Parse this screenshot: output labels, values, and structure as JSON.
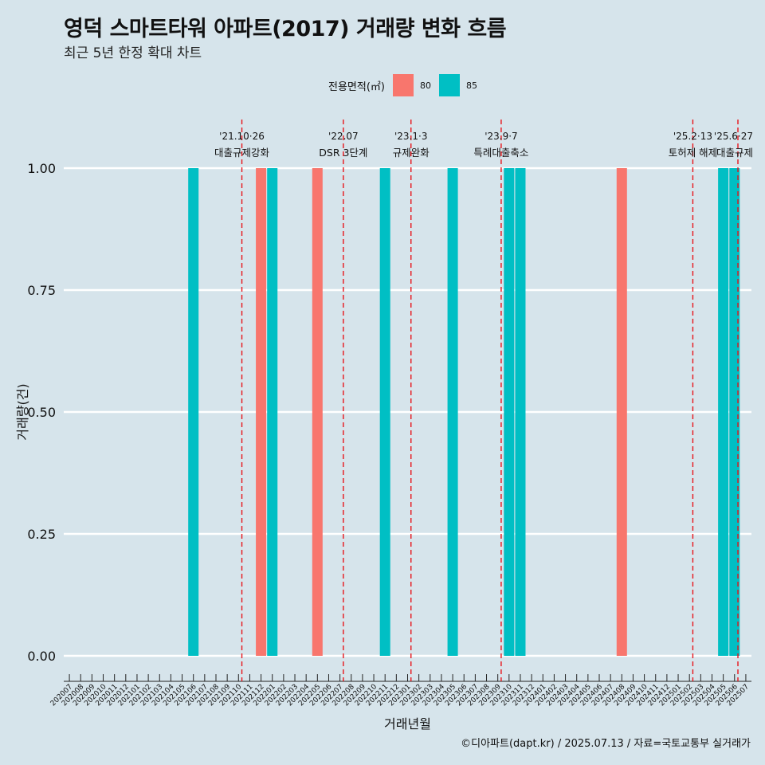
{
  "title": "영덕 스마트타워 아파트(2017) 거래량 변화 흐름",
  "subtitle": "최근 5년 한정 확대 차트",
  "caption": "©디아파트(dapt.kr) / 2025.07.13 / 자료=국토교통부 실거래가",
  "colors": {
    "background": "#d6e4eb",
    "grid": "#ffffff",
    "event_line": "#e8141a"
  },
  "chart_data": {
    "type": "bar",
    "xlabel": "거래년월",
    "ylabel": "거래량(건)",
    "ylim": [
      0,
      1
    ],
    "yticks": [
      "0.00",
      "0.25",
      "0.50",
      "0.75",
      "1.00"
    ],
    "legend": {
      "title": "전용면적(㎡)",
      "placement": "top",
      "entries": [
        {
          "label": "80",
          "color": "#f8766d"
        },
        {
          "label": "85",
          "color": "#00bfc4"
        }
      ]
    },
    "categories": [
      "202007",
      "202008",
      "202009",
      "202010",
      "202011",
      "202012",
      "202101",
      "202102",
      "202103",
      "202104",
      "202105",
      "202106",
      "202107",
      "202108",
      "202109",
      "202110",
      "202111",
      "202112",
      "202201",
      "202202",
      "202203",
      "202204",
      "202205",
      "202206",
      "202207",
      "202208",
      "202209",
      "202210",
      "202211",
      "202212",
      "202301",
      "202302",
      "202303",
      "202304",
      "202305",
      "202306",
      "202307",
      "202308",
      "202309",
      "202310",
      "202311",
      "202312",
      "202401",
      "202402",
      "202403",
      "202404",
      "202405",
      "202406",
      "202407",
      "202408",
      "202409",
      "202410",
      "202411",
      "202412",
      "202501",
      "202502",
      "202503",
      "202504",
      "202505",
      "202506",
      "202507"
    ],
    "series": [
      {
        "name": "80",
        "color": "#f8766d",
        "values": [
          0,
          0,
          0,
          0,
          0,
          0,
          0,
          0,
          0,
          0,
          0,
          0,
          0,
          0,
          0,
          0,
          0,
          1,
          0,
          0,
          0,
          0,
          1,
          0,
          0,
          0,
          0,
          0,
          0,
          0,
          0,
          0,
          0,
          0,
          0,
          0,
          0,
          0,
          0,
          0,
          0,
          0,
          0,
          0,
          0,
          0,
          0,
          0,
          0,
          1,
          0,
          0,
          0,
          0,
          0,
          0,
          0,
          0,
          0,
          0,
          0
        ]
      },
      {
        "name": "85",
        "color": "#00bfc4",
        "values": [
          0,
          0,
          0,
          0,
          0,
          0,
          0,
          0,
          0,
          0,
          0,
          1,
          0,
          0,
          0,
          0,
          0,
          0,
          1,
          0,
          0,
          0,
          0,
          0,
          0,
          0,
          0,
          0,
          1,
          0,
          0,
          0,
          0,
          0,
          1,
          0,
          0,
          0,
          0,
          1,
          1,
          0,
          0,
          0,
          0,
          0,
          0,
          0,
          0,
          0,
          0,
          0,
          0,
          0,
          0,
          0,
          0,
          0,
          1,
          1,
          0
        ]
      }
    ],
    "events": [
      {
        "date": "'21.10·26",
        "label": "대출규제강화",
        "position": 15.8
      },
      {
        "date": "'22.07",
        "label": "DSR 3단계",
        "position": 24.8
      },
      {
        "date": "'23.1·3",
        "label": "규제완화",
        "position": 30.8
      },
      {
        "date": "'23.9·7",
        "label": "특례대출축소",
        "position": 38.8
      },
      {
        "date": "'25.2·13",
        "label": "토허제 해제",
        "position": 55.8
      },
      {
        "date": "'25.6·27",
        "label": "대출규제",
        "position": 59.8
      }
    ]
  }
}
